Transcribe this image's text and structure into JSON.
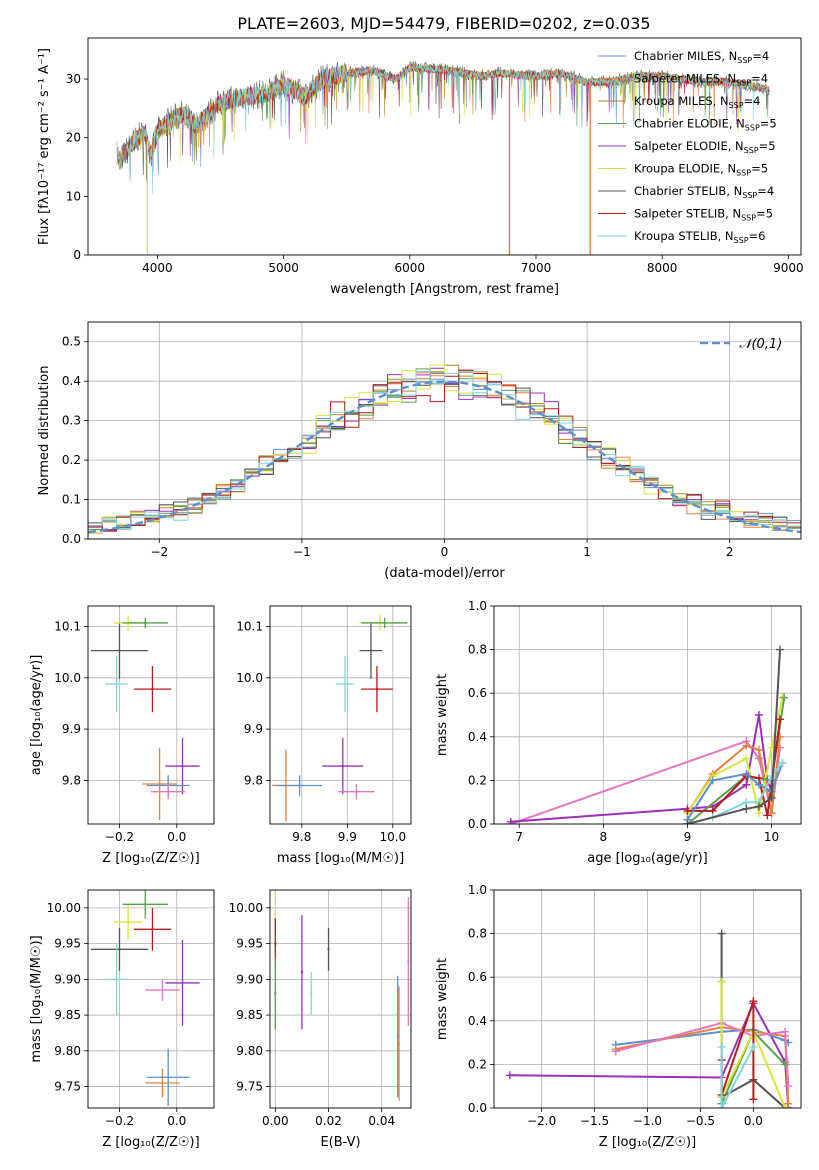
{
  "figure_title": "PLATE=2603, MJD=54479, FIBERID=0202, z=0.035",
  "models": [
    {
      "label": "Chabrier MILES, N",
      "sub": "SSP",
      "suffix": "=4",
      "color": "#5b8fd0"
    },
    {
      "label": "Salpeter MILES, N",
      "sub": "SSP",
      "suffix": "=4",
      "color": "#e9803d"
    },
    {
      "label": "Kroupa MILES, N",
      "sub": "SSP",
      "suffix": "=4",
      "color": "#b08a1a"
    },
    {
      "label": "Chabrier ELODIE, N",
      "sub": "SSP",
      "suffix": "=5",
      "color": "#5aa050"
    },
    {
      "label": "Salpeter ELODIE, N",
      "sub": "SSP",
      "suffix": "=5",
      "color": "#9b30b8"
    },
    {
      "label": "Kroupa ELODIE, N",
      "sub": "SSP",
      "suffix": "=5",
      "color": "#d9e63a"
    },
    {
      "label": "Chabrier STELIB, N",
      "sub": "SSP",
      "suffix": "=4",
      "color": "#555555"
    },
    {
      "label": "Salpeter STELIB, N",
      "sub": "SSP",
      "suffix": "=5",
      "color": "#b71c1c"
    },
    {
      "label": "Kroupa STELIB, N",
      "sub": "SSP",
      "suffix": "=6",
      "color": "#7fd6dc"
    }
  ],
  "chart_data": [
    {
      "type": "line",
      "xlabel": "wavelength [Angstrom, rest frame]",
      "ylabel": "Flux [fλ10⁻¹⁷ erg cm⁻² s⁻¹ A⁻¹]",
      "xlim": [
        3450,
        9100
      ],
      "ylim": [
        0,
        37
      ],
      "xticks": [
        4000,
        5000,
        6000,
        7000,
        8000,
        9000
      ],
      "yticks": [
        0,
        10,
        20,
        30
      ],
      "grid": false,
      "legend": "top-right",
      "spectrum_knots": {
        "x": [
          3680,
          3700,
          3800,
          3900,
          3950,
          4000,
          4100,
          4200,
          4300,
          4500,
          4700,
          4860,
          5000,
          5175,
          5300,
          5500,
          5700,
          5890,
          6000,
          6300,
          6563,
          6700,
          7000,
          7200,
          7400,
          7600,
          7800,
          8000,
          8300,
          8500,
          8700,
          8850
        ],
        "y": [
          18,
          16,
          19,
          21,
          17,
          21,
          23,
          24,
          22,
          26,
          27,
          27.5,
          29,
          27,
          30,
          31,
          31.5,
          30,
          32,
          31.5,
          30.5,
          31,
          30.5,
          31,
          29.5,
          29.5,
          30.5,
          30.5,
          29.5,
          29.5,
          29,
          28
        ]
      },
      "dropouts": [
        [
          3920,
          "#d9e63a"
        ],
        [
          6790,
          "#b08a1a"
        ],
        [
          7430,
          "#e9803d"
        ]
      ]
    },
    {
      "type": "histogram",
      "xlabel": "(data-model)/error",
      "ylabel": "Normed distribution",
      "xlim": [
        -2.5,
        2.5
      ],
      "ylim": [
        0,
        0.55
      ],
      "xticks": [
        -2,
        -1,
        0,
        1,
        2
      ],
      "yticks": [
        0.0,
        0.1,
        0.2,
        0.3,
        0.4,
        0.5
      ],
      "grid": true,
      "legend": "top-right",
      "reference": {
        "label": "𝒩(0,1)",
        "mean": 0,
        "sigma": 1,
        "color": "#5b8fd0"
      },
      "bin_width": 0.1
    },
    {
      "type": "scatter",
      "xlabel": "Z [log₁₀(Z/Z☉)]",
      "ylabel": "age  [log₁₀(age/yr)]",
      "xlim": [
        -0.31,
        0.13
      ],
      "ylim": [
        9.715,
        10.14
      ],
      "xticks": [
        -0.2,
        0.0
      ],
      "yticks": [
        9.8,
        9.9,
        10.0,
        10.1
      ],
      "grid": true,
      "points": [
        {
          "x": -0.2,
          "y": 10.053,
          "xerr": 0.1,
          "yerr": 0.055,
          "color": "#555555"
        },
        {
          "x": -0.17,
          "y": 10.107,
          "xerr": 0.05,
          "yerr": 0.015,
          "color": "#d9e63a"
        },
        {
          "x": -0.11,
          "y": 10.107,
          "xerr": 0.08,
          "yerr": 0.01,
          "color": "#5aa050"
        },
        {
          "x": -0.21,
          "y": 9.988,
          "xerr": 0.04,
          "yerr": 0.055,
          "color": "#7fd6dc"
        },
        {
          "x": -0.085,
          "y": 9.978,
          "xerr": 0.065,
          "yerr": 0.045,
          "color": "#b71c1c"
        },
        {
          "x": 0.02,
          "y": 9.828,
          "xerr": 0.06,
          "yerr": 0.055,
          "color": "#9b30b8"
        },
        {
          "x": -0.06,
          "y": 9.793,
          "xerr": 0.06,
          "yerr": 0.07,
          "color": "#e9803d"
        },
        {
          "x": -0.03,
          "y": 9.79,
          "xerr": 0.075,
          "yerr": 0.02,
          "color": "#5b8fd0"
        },
        {
          "x": -0.03,
          "y": 9.778,
          "xerr": 0.06,
          "yerr": 0.015,
          "color": "#e377c2"
        }
      ]
    },
    {
      "type": "scatter",
      "xlabel": "mass [log₁₀(M/M☉)]",
      "ylabel": "",
      "xlim": [
        9.73,
        10.04
      ],
      "ylim": [
        9.715,
        10.14
      ],
      "xticks": [
        9.8,
        9.9,
        10.0
      ],
      "yticks": [
        9.8,
        9.9,
        10.0,
        10.1
      ],
      "grid": true,
      "points": [
        {
          "x": 9.952,
          "y": 10.053,
          "xerr": 0.025,
          "yerr": 0.055,
          "color": "#555555"
        },
        {
          "x": 9.972,
          "y": 10.107,
          "xerr": 0.045,
          "yerr": 0.015,
          "color": "#d9e63a"
        },
        {
          "x": 9.982,
          "y": 10.107,
          "xerr": 0.05,
          "yerr": 0.01,
          "color": "#5aa050"
        },
        {
          "x": 9.895,
          "y": 9.988,
          "xerr": 0.02,
          "yerr": 0.055,
          "color": "#7fd6dc"
        },
        {
          "x": 9.965,
          "y": 9.978,
          "xerr": 0.035,
          "yerr": 0.045,
          "color": "#b71c1c"
        },
        {
          "x": 9.89,
          "y": 9.828,
          "xerr": 0.045,
          "yerr": 0.055,
          "color": "#9b30b8"
        },
        {
          "x": 9.765,
          "y": 9.79,
          "xerr": 0.03,
          "yerr": 0.07,
          "color": "#e9803d"
        },
        {
          "x": 9.795,
          "y": 9.79,
          "xerr": 0.05,
          "yerr": 0.02,
          "color": "#5b8fd0"
        },
        {
          "x": 9.92,
          "y": 9.778,
          "xerr": 0.04,
          "yerr": 0.015,
          "color": "#e377c2"
        }
      ]
    },
    {
      "type": "line",
      "xlabel": "age  [log₁₀(age/yr)]",
      "ylabel": "mass weight",
      "xlim": [
        6.7,
        10.35
      ],
      "ylim": [
        0,
        1.0
      ],
      "xticks": [
        7,
        8,
        9,
        10
      ],
      "yticks": [
        0.0,
        0.2,
        0.4,
        0.6,
        0.8,
        1.0
      ],
      "grid": true,
      "series": [
        {
          "color": "#e377c2",
          "x": [
            6.9,
            9.7,
            9.85,
            10.0,
            10.1
          ],
          "y": [
            0.0,
            0.38,
            0.3,
            0.05,
            0.35
          ]
        },
        {
          "color": "#9b30b8",
          "x": [
            6.9,
            9.0,
            9.3,
            9.7,
            9.85,
            9.95,
            10.0
          ],
          "y": [
            0.01,
            0.07,
            0.08,
            0.18,
            0.5,
            0.2,
            0.15
          ]
        },
        {
          "color": "#e9803d",
          "x": [
            9.0,
            9.3,
            9.7,
            9.85,
            10.0,
            10.1
          ],
          "y": [
            0.05,
            0.23,
            0.36,
            0.34,
            0.05,
            0.4
          ]
        },
        {
          "color": "#d9e63a",
          "x": [
            9.0,
            9.3,
            9.7,
            9.85,
            10.0,
            10.13
          ],
          "y": [
            0.05,
            0.22,
            0.3,
            0.05,
            0.35,
            0.58
          ]
        },
        {
          "color": "#5aa050",
          "x": [
            9.0,
            9.7,
            10.0,
            10.15
          ],
          "y": [
            0.0,
            0.22,
            0.2,
            0.58
          ]
        },
        {
          "color": "#b71c1c",
          "x": [
            9.0,
            9.3,
            9.7,
            9.85,
            9.95,
            10.1
          ],
          "y": [
            0.06,
            0.06,
            0.22,
            0.21,
            0.04,
            0.48
          ]
        },
        {
          "color": "#5b8fd0",
          "x": [
            9.0,
            9.3,
            9.7,
            9.85,
            10.0,
            10.13
          ],
          "y": [
            0.02,
            0.2,
            0.23,
            0.18,
            0.15,
            0.28
          ]
        },
        {
          "color": "#7fd6dc",
          "x": [
            9.3,
            9.7,
            9.85,
            10.0,
            10.13
          ],
          "y": [
            0.03,
            0.1,
            0.1,
            0.22,
            0.28
          ]
        },
        {
          "color": "#555555",
          "x": [
            9.0,
            9.7,
            9.85,
            10.0,
            10.1
          ],
          "y": [
            0.0,
            0.07,
            0.08,
            0.12,
            0.8
          ]
        }
      ]
    },
    {
      "type": "scatter",
      "xlabel": "Z [log₁₀(Z/Z☉)]",
      "ylabel": "mass [log₁₀(M/M☉)]",
      "xlim": [
        -0.31,
        0.13
      ],
      "ylim": [
        9.72,
        10.025
      ],
      "xticks": [
        -0.2,
        0.0
      ],
      "yticks": [
        9.75,
        9.8,
        9.85,
        9.9,
        9.95,
        10.0
      ],
      "grid": true,
      "points": [
        {
          "x": -0.2,
          "y": 9.942,
          "xerr": 0.1,
          "yerr": 0.03,
          "color": "#555555"
        },
        {
          "x": -0.17,
          "y": 9.98,
          "xerr": 0.05,
          "yerr": 0.025,
          "color": "#d9e63a"
        },
        {
          "x": -0.11,
          "y": 10.005,
          "xerr": 0.08,
          "yerr": 0.02,
          "color": "#5aa050"
        },
        {
          "x": -0.21,
          "y": 9.9,
          "xerr": 0.04,
          "yerr": 0.05,
          "color": "#7fd6dc"
        },
        {
          "x": -0.085,
          "y": 9.97,
          "xerr": 0.065,
          "yerr": 0.03,
          "color": "#b71c1c"
        },
        {
          "x": 0.02,
          "y": 9.895,
          "xerr": 0.06,
          "yerr": 0.06,
          "color": "#9b30b8"
        },
        {
          "x": -0.05,
          "y": 9.885,
          "xerr": 0.06,
          "yerr": 0.015,
          "color": "#e377c2"
        },
        {
          "x": -0.05,
          "y": 9.755,
          "xerr": 0.06,
          "yerr": 0.02,
          "color": "#e9803d"
        },
        {
          "x": -0.03,
          "y": 9.763,
          "xerr": 0.075,
          "yerr": 0.04,
          "color": "#5b8fd0"
        }
      ]
    },
    {
      "type": "scatter",
      "xlabel": "E(B-V)",
      "ylabel": "",
      "xlim": [
        -0.002,
        0.051
      ],
      "ylim": [
        9.72,
        10.025
      ],
      "xticks": [
        0.0,
        0.02,
        0.04
      ],
      "yticks": [
        9.75,
        9.8,
        9.85,
        9.9,
        9.95,
        10.0
      ],
      "grid": true,
      "points": [
        {
          "x": 0.0,
          "y": 9.985,
          "xerr": 0,
          "yerr": 0.045,
          "color": "#d9e63a"
        },
        {
          "x": 0.0,
          "y": 9.95,
          "xerr": 0,
          "yerr": 0.035,
          "color": "#b71c1c"
        },
        {
          "x": 0.0,
          "y": 9.88,
          "xerr": 0,
          "yerr": 0.05,
          "color": "#5aa050"
        },
        {
          "x": 0.01,
          "y": 9.91,
          "xerr": 0,
          "yerr": 0.08,
          "color": "#9b30b8"
        },
        {
          "x": 0.0135,
          "y": 9.88,
          "xerr": 0,
          "yerr": 0.03,
          "color": "#7fd6dc"
        },
        {
          "x": 0.02,
          "y": 9.942,
          "xerr": 0,
          "yerr": 0.03,
          "color": "#555555"
        },
        {
          "x": 0.046,
          "y": 9.82,
          "xerr": 0,
          "yerr": 0.085,
          "color": "#5b8fd0"
        },
        {
          "x": 0.0465,
          "y": 9.81,
          "xerr": 0,
          "yerr": 0.08,
          "color": "#e9803d"
        },
        {
          "x": 0.05,
          "y": 9.925,
          "xerr": 0,
          "yerr": 0.09,
          "color": "#e377c2"
        }
      ]
    },
    {
      "type": "line",
      "xlabel": "Z [log₁₀(Z/Z☉)]",
      "ylabel": "mass weight",
      "xlim": [
        -2.45,
        0.45
      ],
      "ylim": [
        0,
        1.0
      ],
      "xticks": [
        -2.0,
        -1.5,
        -1.0,
        -0.5,
        0.0
      ],
      "yticks": [
        0.0,
        0.2,
        0.4,
        0.6,
        0.8,
        1.0
      ],
      "grid": true,
      "series": [
        {
          "color": "#9b30b8",
          "x": [
            -2.3,
            -0.3,
            0.0,
            0.3,
            0.33
          ],
          "y": [
            0.15,
            0.14,
            0.48,
            0.21,
            0.0
          ]
        },
        {
          "color": "#5b8fd0",
          "x": [
            -1.3,
            -0.3,
            0.0,
            0.3,
            0.33
          ],
          "y": [
            0.29,
            0.35,
            0.36,
            0.31,
            0.3
          ]
        },
        {
          "color": "#e9803d",
          "x": [
            -1.3,
            -0.3,
            0.3,
            0.33
          ],
          "y": [
            0.27,
            0.37,
            0.33,
            0.02
          ]
        },
        {
          "color": "#e377c2",
          "x": [
            -1.3,
            -0.3,
            0.0,
            0.3,
            0.33
          ],
          "y": [
            0.26,
            0.39,
            0.33,
            0.35,
            0.1
          ]
        },
        {
          "color": "#555555",
          "x": [
            -0.3,
            -0.3,
            0.0,
            0.3
          ],
          "y": [
            0.8,
            0.05,
            0.13,
            0.0
          ]
        },
        {
          "color": "#5aa050",
          "x": [
            -0.3,
            -0.3,
            0.0,
            0.3
          ],
          "y": [
            0.58,
            0.02,
            0.35,
            0.2
          ]
        },
        {
          "color": "#d9e63a",
          "x": [
            -0.3,
            -0.3,
            0.0,
            0.3
          ],
          "y": [
            0.58,
            0.05,
            0.35,
            0.0
          ]
        },
        {
          "color": "#b71c1c",
          "x": [
            -0.3,
            -0.3,
            0.0,
            0.0
          ],
          "y": [
            0.22,
            0.06,
            0.49,
            0.04
          ]
        },
        {
          "color": "#7fd6dc",
          "x": [
            -0.3,
            -0.3,
            0.0
          ],
          "y": [
            0.28,
            0.0,
            0.28
          ]
        }
      ]
    }
  ]
}
